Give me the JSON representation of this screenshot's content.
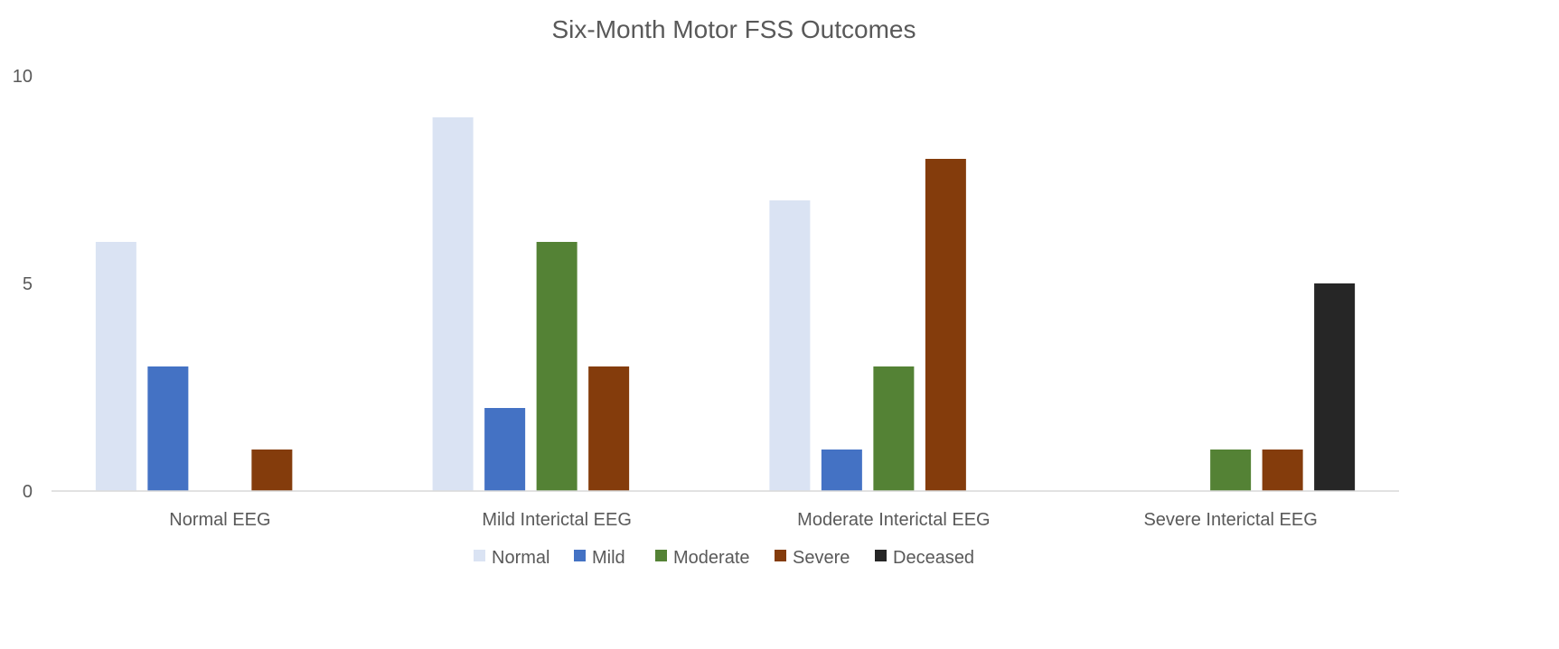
{
  "chart_data": {
    "type": "bar",
    "title": "Six-Month Motor FSS Outcomes",
    "xlabel": "",
    "ylabel": "",
    "ylim": [
      0,
      10
    ],
    "yticks": [
      0,
      5,
      10
    ],
    "grid": false,
    "legend_position": "bottom",
    "categories": [
      "Normal EEG",
      "Mild Interictal EEG",
      "Moderate Interictal EEG",
      "Severe Interictal EEG"
    ],
    "series": [
      {
        "name": "Normal",
        "color": "#dae3f3",
        "values": [
          6,
          9,
          7,
          0
        ]
      },
      {
        "name": "Mild",
        "color": "#4472c4",
        "values": [
          3,
          2,
          1,
          0
        ]
      },
      {
        "name": "Moderate",
        "color": "#548235",
        "values": [
          0,
          6,
          3,
          1
        ]
      },
      {
        "name": "Severe",
        "color": "#843c0c",
        "values": [
          1,
          3,
          8,
          1
        ]
      },
      {
        "name": "Deceased",
        "color": "#262626",
        "values": [
          0,
          0,
          0,
          5
        ]
      }
    ]
  }
}
